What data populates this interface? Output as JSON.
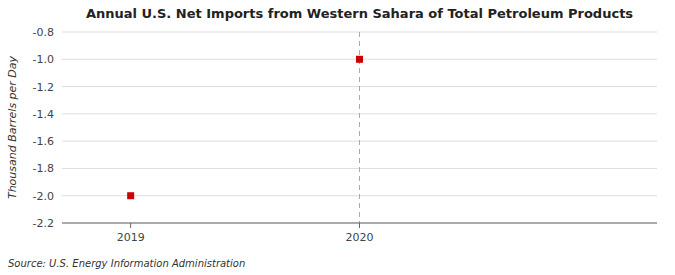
{
  "chart_data": {
    "type": "scatter",
    "title": "Annual U.S. Net Imports from Western Sahara of Total Petroleum Products",
    "y_label": "Thousand Barrels per Day",
    "source": "Source: U.S. Energy Information Administration",
    "x": [
      2019,
      2020
    ],
    "values": [
      -2.0,
      -1.0
    ],
    "color": "#CC0000",
    "marker": "square",
    "xlim": [
      2018.7,
      2021.3
    ],
    "ylim": [
      -2.2,
      -0.8
    ],
    "xticks": [
      2019,
      2020
    ],
    "yticks": [
      -2.2,
      {
        "value": -2.0,
        "label": "-2.0"
      },
      -1.8,
      -1.6,
      -1.4,
      -1.2,
      {
        "value": -1.0,
        "label": "-1.0"
      },
      -0.8
    ],
    "grid": true,
    "annotations": [
      {
        "type": "vline",
        "x": 2020,
        "color": "#AAAAAA"
      }
    ]
  }
}
